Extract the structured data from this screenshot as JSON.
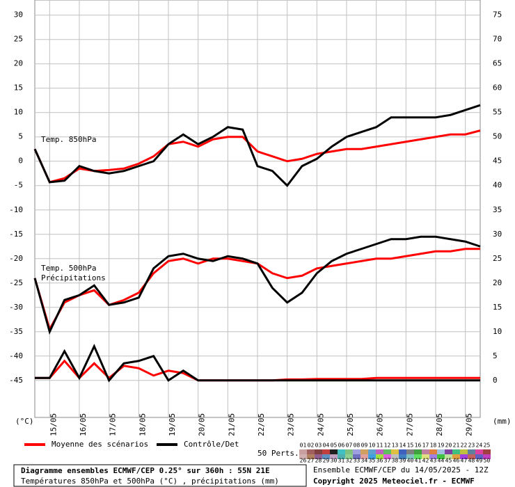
{
  "chart_data": {
    "type": "line",
    "x": [
      0,
      12,
      24,
      36,
      48,
      60,
      72,
      84,
      96,
      108,
      120,
      132,
      144,
      156,
      168,
      180,
      192,
      204,
      216,
      228,
      240,
      252,
      264,
      276,
      288,
      300,
      312,
      324,
      336,
      348,
      360
    ],
    "xlim": [
      0,
      360
    ],
    "xticks": [
      {
        "value": 12,
        "label": "15/05"
      },
      {
        "value": 36,
        "label": "16/05"
      },
      {
        "value": 60,
        "label": "17/05"
      },
      {
        "value": 84,
        "label": "18/05"
      },
      {
        "value": 108,
        "label": "19/05"
      },
      {
        "value": 132,
        "label": "20/05"
      },
      {
        "value": 156,
        "label": "21/05"
      },
      {
        "value": 180,
        "label": "22/05"
      },
      {
        "value": 204,
        "label": "23/05"
      },
      {
        "value": 228,
        "label": "24/05"
      },
      {
        "value": 252,
        "label": "25/05"
      },
      {
        "value": 276,
        "label": "26/05"
      },
      {
        "value": 300,
        "label": "27/05"
      },
      {
        "value": 324,
        "label": "28/05"
      },
      {
        "value": 348,
        "label": "29/05"
      }
    ],
    "ylim": [
      -52.6,
      33.1
    ],
    "yticks": [
      -45,
      -40,
      -35,
      -30,
      -25,
      -20,
      -15,
      -10,
      -5,
      0,
      5,
      10,
      15,
      20,
      25,
      30
    ],
    "y2lim": [
      -7.6,
      78.1
    ],
    "y2ticks": [
      0,
      5,
      10,
      15,
      20,
      25,
      30,
      35,
      40,
      45,
      50,
      55,
      60,
      65,
      70,
      75
    ],
    "ylabel": "(°C)",
    "y2label": "(mm)",
    "grid": true,
    "series": [
      {
        "name": "Temp. 850hPa",
        "mean": [
          2.5,
          -4.3,
          -3.5,
          -1.5,
          -2.0,
          -1.8,
          -1.5,
          -0.5,
          1.0,
          3.5,
          4.0,
          3.0,
          4.5,
          5.0,
          5.0,
          2.0,
          1.0,
          0.0,
          0.5,
          1.5,
          2.0,
          2.5,
          2.5,
          3.0,
          3.5,
          4.0,
          4.5,
          5.0,
          5.5,
          5.5,
          6.3
        ],
        "control": [
          2.5,
          -4.3,
          -4.0,
          -1.0,
          -2.0,
          -2.5,
          -2.0,
          -1.0,
          0.0,
          3.5,
          5.5,
          3.5,
          5.0,
          7.0,
          6.5,
          -1.0,
          -2.0,
          -5.0,
          -1.0,
          0.5,
          3.0,
          5.0,
          6.0,
          7.0,
          9.0,
          9.0,
          9.0,
          9.0,
          9.5,
          10.5,
          11.5
        ]
      },
      {
        "name": "Temp. 500hPa",
        "mean": [
          -24,
          -34.5,
          -29,
          -27.5,
          -26.5,
          -29.5,
          -28.5,
          -27,
          -23,
          -20.5,
          -20,
          -21,
          -20,
          -20,
          -20.5,
          -21,
          -23,
          -24,
          -23.5,
          -22,
          -21.5,
          -21,
          -20.5,
          -20,
          -20,
          -19.5,
          -19,
          -18.5,
          -18.5,
          -18,
          -18
        ],
        "control": [
          -24,
          -35,
          -28.5,
          -27.5,
          -25.5,
          -29.5,
          -29,
          -28,
          -22,
          -19.5,
          -19,
          -20,
          -20.5,
          -19.5,
          -20,
          -21,
          -26,
          -29,
          -27,
          -23,
          -20.5,
          -19,
          -18,
          -17,
          -16,
          -16,
          -15.5,
          -15.5,
          -16,
          -16.5,
          -17.5
        ]
      },
      {
        "name": "Précipitations",
        "axis": "y2",
        "mean": [
          0.5,
          0.5,
          4,
          0.5,
          3.5,
          0.5,
          3,
          2.5,
          1,
          2,
          1.5,
          0,
          0,
          0,
          0,
          0,
          0,
          0.2,
          0.2,
          0.3,
          0.3,
          0.3,
          0.3,
          0.5,
          0.5,
          0.5,
          0.5,
          0.5,
          0.5,
          0.5,
          0.5
        ],
        "control": [
          0.5,
          0.5,
          6,
          0.5,
          7,
          0,
          3.5,
          4,
          5,
          0,
          2,
          0,
          0,
          0,
          0,
          0,
          0,
          0,
          0,
          0,
          0,
          0,
          0,
          0,
          0,
          0,
          0,
          0,
          0,
          0,
          0
        ]
      }
    ],
    "legend": [
      {
        "name": "Moyenne des scénarios",
        "color": "#ff0000"
      },
      {
        "name": "Contrôle/Det",
        "color": "#000000"
      }
    ],
    "members": {
      "label": "50 Perts.",
      "items": [
        {
          "label": "01",
          "color": "#c8a0a0"
        },
        {
          "label": "02",
          "color": "#a06060"
        },
        {
          "label": "03",
          "color": "#804040"
        },
        {
          "label": "04",
          "color": "#c04040"
        },
        {
          "label": "05",
          "color": "#202020"
        },
        {
          "label": "06",
          "color": "#40c0c0"
        },
        {
          "label": "07",
          "color": "#80c080"
        },
        {
          "label": "08",
          "color": "#a0a0e0"
        },
        {
          "label": "09",
          "color": "#d0a060"
        },
        {
          "label": "10",
          "color": "#60a0d0"
        },
        {
          "label": "11",
          "color": "#c060c0"
        },
        {
          "label": "12",
          "color": "#60c060"
        },
        {
          "label": "13",
          "color": "#e0c040"
        },
        {
          "label": "14",
          "color": "#4060c0"
        },
        {
          "label": "15",
          "color": "#808080"
        },
        {
          "label": "16",
          "color": "#40a040"
        },
        {
          "label": "17",
          "color": "#c080a0"
        },
        {
          "label": "18",
          "color": "#e08040"
        },
        {
          "label": "19",
          "color": "#a0c0e0"
        },
        {
          "label": "20",
          "color": "#8040a0"
        },
        {
          "label": "21",
          "color": "#40c080"
        },
        {
          "label": "22",
          "color": "#c0c040"
        },
        {
          "label": "23",
          "color": "#6080a0"
        },
        {
          "label": "24",
          "color": "#e040a0"
        },
        {
          "label": "25",
          "color": "#a04040"
        },
        {
          "label": "26",
          "color": "#d0b0b0"
        },
        {
          "label": "27",
          "color": "#b08060"
        },
        {
          "label": "28",
          "color": "#906090"
        },
        {
          "label": "29",
          "color": "#6090c0"
        },
        {
          "label": "30",
          "color": "#c0a0c0"
        },
        {
          "label": "31",
          "color": "#50b0b0"
        },
        {
          "label": "32",
          "color": "#90d090"
        },
        {
          "label": "33",
          "color": "#7070c0"
        },
        {
          "label": "34",
          "color": "#e0a0a0"
        },
        {
          "label": "35",
          "color": "#40a0e0"
        },
        {
          "label": "36",
          "color": "#a0e040"
        },
        {
          "label": "37",
          "color": "#e060e0"
        },
        {
          "label": "38",
          "color": "#c0c0c0"
        },
        {
          "label": "39",
          "color": "#4080c0"
        },
        {
          "label": "40",
          "color": "#80c0c0"
        },
        {
          "label": "41",
          "color": "#60e060"
        },
        {
          "label": "42",
          "color": "#e0e080"
        },
        {
          "label": "43",
          "color": "#a080e0"
        },
        {
          "label": "44",
          "color": "#40c040"
        },
        {
          "label": "45",
          "color": "#c0e0a0"
        },
        {
          "label": "46",
          "color": "#e0a040"
        },
        {
          "label": "47",
          "color": "#a040e0"
        },
        {
          "label": "48",
          "color": "#c06060"
        },
        {
          "label": "49",
          "color": "#6060c0"
        },
        {
          "label": "50",
          "color": "#c040c0"
        }
      ]
    },
    "footer": {
      "title": "Diagramme ensembles ECMWF/CEP 0.25° sur 360h : 55N 21E",
      "subtitle": "Températures 850hPa et 500hPa (°C) , précipitations (mm)",
      "run": "Ensemble ECMWF/CEP du 14/05/2025 - 12Z",
      "copyright": "Copyright 2025 Meteociel.fr - ECMWF"
    }
  }
}
